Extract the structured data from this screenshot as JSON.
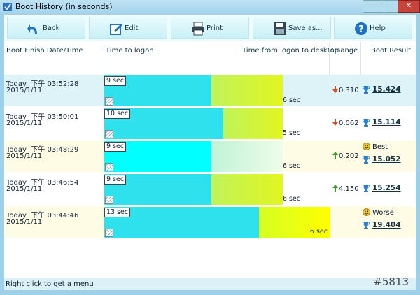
{
  "window": {
    "title": "Boot History (in seconds)"
  },
  "toolbar": [
    "Back",
    "Edit",
    "Print",
    "Save as...",
    "Help"
  ],
  "table": {
    "headers": {
      "datetime": "Boot Finish Date/Time",
      "logon": "Time to logon",
      "desktop": "Time from logon to desktop",
      "change": "Change",
      "result": "Boot Result"
    },
    "rows": [
      {
        "datetime": "Today  下午 03:52:28",
        "date": "2015/1/11",
        "logon": {
          "value": 9,
          "label": "9 sec"
        },
        "desktop": {
          "value": 6,
          "label": "6 sec"
        },
        "change": "0.310",
        "trend": "down",
        "result": "15.424"
      },
      {
        "datetime": "Today  下午 03:50:01",
        "date": "2015/1/11",
        "logon": {
          "value": 10,
          "label": "10 sec"
        },
        "desktop": {
          "value": 5,
          "label": "5 sec"
        },
        "change": "0.062",
        "trend": "down",
        "result": "15.114"
      },
      {
        "datetime": "Today  下午 03:48:29",
        "date": "2015/1/11",
        "logon": {
          "value": 9,
          "label": "9 sec"
        },
        "desktop": {
          "value": 6,
          "label": "6 sec"
        },
        "change": "0.202",
        "trend": "up",
        "result": "15.052",
        "badge": "Best"
      },
      {
        "datetime": "Today  下午 03:46:54",
        "date": "2015/1/11",
        "logon": {
          "value": 9,
          "label": "9 sec"
        },
        "desktop": {
          "value": 6,
          "label": "6 sec"
        },
        "change": "4.150",
        "trend": "up",
        "result": "15.254"
      },
      {
        "datetime": "Today  下午 03:44:46",
        "date": "2015/1/11",
        "logon": {
          "value": 13,
          "label": "13 sec"
        },
        "desktop": {
          "value": 6,
          "label": "6 sec"
        },
        "result": "19.404",
        "badge": "Worse"
      }
    ]
  },
  "status": "Right click to get a menu",
  "watermark": "#5813"
}
